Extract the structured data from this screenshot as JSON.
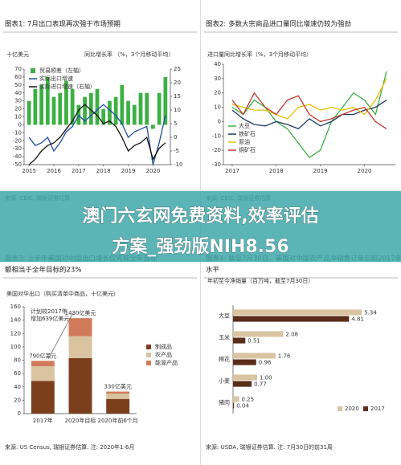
{
  "chart_data": [
    {
      "type": "combo",
      "title": "图表1: 7月出口表现再次强于市场预期",
      "ylabel": "十亿美元",
      "y2label": "同比增长率 （%，3个月移动平均）",
      "x": [
        2015,
        2015.25,
        2015.5,
        2015.75,
        2016,
        2016.25,
        2016.5,
        2016.75,
        2017,
        2017.25,
        2017.5,
        2017.75,
        2018,
        2018.25,
        2018.5,
        2018.75,
        2019,
        2019.25,
        2019.5,
        2019.75,
        2020,
        2020.25,
        2020.5
      ],
      "xlim": [
        2014.8,
        2020.7
      ],
      "xticks": [
        2015,
        2016,
        2017,
        2018,
        2019,
        2020
      ],
      "ylim": [
        -50,
        70
      ],
      "yticks": [
        70,
        60,
        50,
        40,
        30,
        20,
        10,
        0,
        -10,
        -20,
        -30,
        -40,
        -50
      ],
      "y2lim": [
        -10,
        25
      ],
      "y2ticks": [
        25,
        20,
        15,
        10,
        5,
        0,
        -5,
        -10
      ],
      "legend": "upper left",
      "series": [
        {
          "name": "贸易顺差（左轴）",
          "kind": "bar",
          "color": "#3cb043",
          "values": [
            30,
            45,
            50,
            60,
            35,
            40,
            55,
            45,
            25,
            35,
            40,
            45,
            20,
            30,
            35,
            50,
            30,
            25,
            40,
            40,
            -5,
            40,
            60
          ]
        },
        {
          "name": "实际出口增速",
          "axis": "y2",
          "color": "#1f4e9c",
          "values": [
            0,
            -3,
            -2,
            0,
            -5,
            -2,
            2,
            4,
            8,
            6,
            8,
            10,
            12,
            10,
            8,
            5,
            0,
            2,
            3,
            4,
            -10,
            -2,
            8
          ]
        },
        {
          "name": "实际进口增速（右轴）",
          "axis": "y2",
          "color": "#111111",
          "values": [
            -10,
            -8,
            -5,
            -3,
            -2,
            0,
            3,
            6,
            10,
            12,
            10,
            8,
            5,
            6,
            4,
            0,
            -5,
            -3,
            -2,
            0,
            -8,
            -4,
            -2
          ]
        }
      ],
      "source": "来源: CEIC, 瑞银证券估算"
    },
    {
      "type": "line",
      "title": "图表2: 多数大宗商品进口量同比增速仍较为强劲",
      "ylabel": "进口量同比增长率（%，3个月移动平均）",
      "x": [
        2017,
        2017.25,
        2017.5,
        2017.75,
        2018,
        2018.25,
        2018.5,
        2018.75,
        2019,
        2019.25,
        2019.5,
        2019.75,
        2020,
        2020.25,
        2020.5
      ],
      "xlim": [
        2016.8,
        2020.7
      ],
      "xticks": [
        2017,
        2018,
        2019,
        2020
      ],
      "ylim": [
        -30,
        40
      ],
      "yticks": [
        40,
        30,
        20,
        10,
        0,
        -10,
        -20,
        -30
      ],
      "legend": "lower left",
      "series": [
        {
          "name": "大豆",
          "color": "#3cb043",
          "values": [
            10,
            5,
            15,
            10,
            0,
            -5,
            -15,
            -25,
            -20,
            0,
            10,
            20,
            15,
            5,
            35
          ]
        },
        {
          "name": "铁矿石",
          "color": "#1f3864",
          "values": [
            8,
            2,
            -2,
            -3,
            0,
            -2,
            -5,
            2,
            -3,
            0,
            5,
            5,
            8,
            10,
            15
          ]
        },
        {
          "name": "原油",
          "color": "#e6c000",
          "values": [
            12,
            10,
            8,
            8,
            5,
            2,
            10,
            12,
            8,
            10,
            8,
            10,
            5,
            15,
            30
          ]
        },
        {
          "name": "铜矿石",
          "color": "#c0392b",
          "values": [
            15,
            5,
            20,
            10,
            5,
            15,
            18,
            5,
            0,
            2,
            5,
            8,
            10,
            0,
            -5
          ]
        }
      ],
      "source": "来源: CEIC, 瑞银证券估算"
    },
    {
      "type": "bar",
      "stacked": true,
      "title": [
        "图表3: 上半年美国对中国出口增长仅完成全年目标",
        "额相当于全年目标的23%"
      ],
      "ylabel": "美国对华出口（购买清单中商品，十亿美元）",
      "categories": [
        "2017年",
        "2020年目标",
        "2020年前6个月"
      ],
      "ylim": [
        0,
        160
      ],
      "yticks": [
        0,
        20,
        40,
        60,
        80,
        100,
        120,
        140,
        160
      ],
      "legend": "right",
      "series": [
        {
          "name": "制成品",
          "color": "#7b3f1e",
          "values": [
            49,
            83,
            22
          ]
        },
        {
          "name": "农产品",
          "color": "#d9c3a0",
          "values": [
            22,
            33,
            8
          ]
        },
        {
          "name": "能源产品",
          "color": "#d07a5a",
          "values": [
            8,
            27,
            3
          ]
        }
      ],
      "annotations": [
        "790亿美元",
        "1430亿美元",
        "330亿美元"
      ],
      "note": [
        "计划较2017年",
        "增加639亿美元"
      ],
      "source": "来源: US Census, 瑞银证券估算. 注: 2020年1-6月"
    },
    {
      "type": "bar",
      "horizontal": true,
      "title": [
        "图表4: 截至7月30日，美国对中国农产品净销售订单已超2017年同期",
        "水平"
      ],
      "ylabel": "年初至今净销量（百万吨，截至7月30日）",
      "categories": [
        "大豆",
        "玉米",
        "棉花",
        "小麦",
        "猪肉"
      ],
      "xlim": [
        0,
        6
      ],
      "legend": "lower right",
      "series": [
        {
          "name": "2020",
          "color": "#d9c3a0",
          "values": [
            5.34,
            2.08,
            1.76,
            1,
            0.25
          ],
          "value_labels": [
            "5.34",
            "2.08",
            "1.76",
            "1.00",
            "0.25"
          ]
        },
        {
          "name": "2017",
          "color": "#5a2d1a",
          "values": [
            4.81,
            0.51,
            0.96,
            0.77,
            0.04
          ],
          "value_labels": [
            "4.81",
            "0.51",
            "0.96",
            "0.77",
            "0.04"
          ]
        }
      ],
      "source": "来源: USDA, 瑞银证券估算. 注: 7月30日的前31周"
    }
  ],
  "banner": {
    "line1": "澳门六玄网免费资料,效率评估",
    "line2": "方案_强劲版NIH8.56"
  }
}
